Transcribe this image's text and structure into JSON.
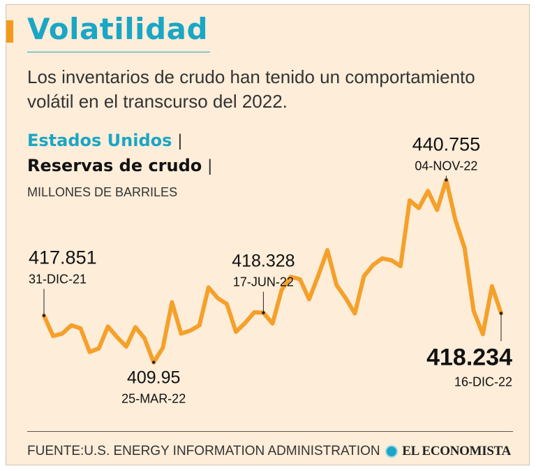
{
  "header": {
    "title": "Volatilidad",
    "subtitle": "Los inventarios de crudo han tenido un comportamiento volátil en el transcurso del 2022."
  },
  "labels": {
    "country": "Estados Unidos",
    "series": "Reservas de crudo",
    "separator": "|",
    "units": "MILLONES DE BARRILES"
  },
  "footer": {
    "source": "FUENTE:U.S. ENERGY INFORMATION ADMINISTRATION",
    "brand": "EL ECONOMISTA"
  },
  "colors": {
    "accent": "#f39a1c",
    "title": "#1aa6c5",
    "background": "#fdedd9",
    "line": "#f5a02a"
  },
  "chart_data": {
    "type": "line",
    "title": "Reservas de crudo",
    "ylabel": "MILLONES DE BARRILES",
    "ylim": [
      408,
      442
    ],
    "series": [
      {
        "name": "Estados Unidos",
        "values": [
          417.851,
          414.4,
          414.8,
          416.2,
          415.7,
          411.7,
          412.3,
          416.0,
          414.2,
          412.6,
          415.9,
          414.0,
          409.95,
          412.4,
          420.1,
          414.8,
          415.3,
          416.2,
          422.6,
          420.8,
          419.8,
          415.1,
          416.6,
          418.4,
          418.328,
          416.5,
          422.2,
          424.4,
          424.0,
          420.6,
          424.6,
          428.9,
          423.0,
          420.8,
          418.2,
          424.5,
          426.4,
          427.5,
          427.2,
          426.2,
          437.3,
          436.0,
          438.9,
          435.7,
          440.755,
          434.0,
          429.3,
          418.6,
          414.7,
          422.8,
          418.234
        ]
      }
    ],
    "annotations": [
      {
        "index": 0,
        "value": "417.851",
        "date": "31-DIC-21"
      },
      {
        "index": 12,
        "value": "409.95",
        "date": "25-MAR-22"
      },
      {
        "index": 24,
        "value": "418.328",
        "date": "17-JUN-22"
      },
      {
        "index": 44,
        "value": "440.755",
        "date": "04-NOV-22"
      },
      {
        "index": 50,
        "value": "418.234",
        "date": "16-DIC-22"
      }
    ]
  }
}
